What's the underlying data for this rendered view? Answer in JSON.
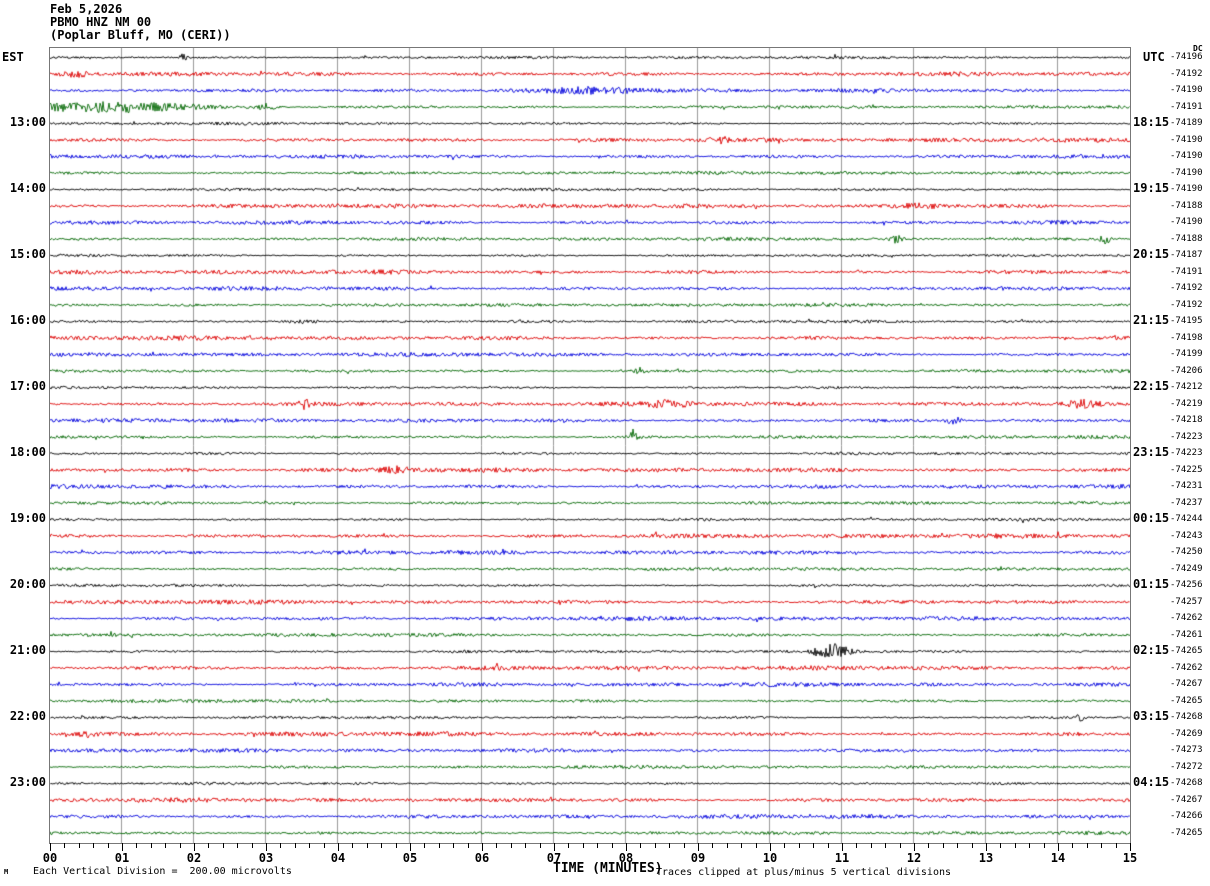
{
  "header": {
    "date": "Feb 5,2026",
    "station": "PBMO HNZ NM 00",
    "location": "(Poplar Bluff, MO (CERI))"
  },
  "axes": {
    "left_header": "EST",
    "right_header": "UTC",
    "dc_header": "DC",
    "x_label": "TIME (MINUTES)"
  },
  "footer": {
    "scale_note": "Each Vertical Division =  200.00 microvolts",
    "clip_note": "Traces clipped at plus/minus 5 vertical divisions",
    "corner_mark": "M"
  },
  "colors": {
    "trace_black": "#000000",
    "trace_red": "#dd0000",
    "trace_blue": "#0000dd",
    "trace_green": "#006600",
    "grid": "#999999",
    "frame": "#777777"
  },
  "chart_data": {
    "type": "line",
    "title": "Helicorder seismogram, station PBMO HNZ NM 00, Poplar Bluff MO (CERI), Feb 5 2026",
    "xlabel": "TIME (MINUTES)",
    "x_range": [
      0,
      15
    ],
    "x_tick_labels": [
      "00",
      "01",
      "02",
      "03",
      "04",
      "05",
      "06",
      "07",
      "08",
      "09",
      "10",
      "11",
      "12",
      "13",
      "14",
      "15"
    ],
    "minor_ticks_per_minute": 5,
    "minutes_per_row": 15,
    "clip_divisions": 5,
    "row_color_cycle": [
      "black",
      "red",
      "blue",
      "green"
    ],
    "noise_amp_by_color": {
      "black": 1.0,
      "red": 1.6,
      "blue": 1.5,
      "green": 1.2
    },
    "rows": [
      {
        "color": "black",
        "est": "",
        "utc": "",
        "dc": -74196
      },
      {
        "color": "red",
        "est": "",
        "utc": "",
        "dc": -74192
      },
      {
        "color": "blue",
        "est": "",
        "utc": "",
        "dc": -74190
      },
      {
        "color": "green",
        "est": "",
        "utc": "",
        "dc": -74191
      },
      {
        "color": "black",
        "est": "13:00",
        "utc": "18:15",
        "dc": -74189
      },
      {
        "color": "red",
        "est": "",
        "utc": "",
        "dc": -74190
      },
      {
        "color": "blue",
        "est": "",
        "utc": "",
        "dc": -74190
      },
      {
        "color": "green",
        "est": "",
        "utc": "",
        "dc": -74190
      },
      {
        "color": "black",
        "est": "14:00",
        "utc": "19:15",
        "dc": -74190
      },
      {
        "color": "red",
        "est": "",
        "utc": "",
        "dc": -74188
      },
      {
        "color": "blue",
        "est": "",
        "utc": "",
        "dc": -74190
      },
      {
        "color": "green",
        "est": "",
        "utc": "",
        "dc": -74188
      },
      {
        "color": "black",
        "est": "15:00",
        "utc": "20:15",
        "dc": -74187
      },
      {
        "color": "red",
        "est": "",
        "utc": "",
        "dc": -74191
      },
      {
        "color": "blue",
        "est": "",
        "utc": "",
        "dc": -74192
      },
      {
        "color": "green",
        "est": "",
        "utc": "",
        "dc": -74192
      },
      {
        "color": "black",
        "est": "16:00",
        "utc": "21:15",
        "dc": -74195
      },
      {
        "color": "red",
        "est": "",
        "utc": "",
        "dc": -74198
      },
      {
        "color": "blue",
        "est": "",
        "utc": "",
        "dc": -74199
      },
      {
        "color": "green",
        "est": "",
        "utc": "",
        "dc": -74206
      },
      {
        "color": "black",
        "est": "17:00",
        "utc": "22:15",
        "dc": -74212
      },
      {
        "color": "red",
        "est": "",
        "utc": "",
        "dc": -74219
      },
      {
        "color": "blue",
        "est": "",
        "utc": "",
        "dc": -74218
      },
      {
        "color": "green",
        "est": "",
        "utc": "",
        "dc": -74223
      },
      {
        "color": "black",
        "est": "18:00",
        "utc": "23:15",
        "dc": -74223
      },
      {
        "color": "red",
        "est": "",
        "utc": "",
        "dc": -74225
      },
      {
        "color": "blue",
        "est": "",
        "utc": "",
        "dc": -74231
      },
      {
        "color": "green",
        "est": "",
        "utc": "",
        "dc": -74237
      },
      {
        "color": "black",
        "est": "19:00",
        "utc": "00:15",
        "dc": -74244
      },
      {
        "color": "red",
        "est": "",
        "utc": "",
        "dc": -74243
      },
      {
        "color": "blue",
        "est": "",
        "utc": "",
        "dc": -74250
      },
      {
        "color": "green",
        "est": "",
        "utc": "",
        "dc": -74249
      },
      {
        "color": "black",
        "est": "20:00",
        "utc": "01:15",
        "dc": -74256
      },
      {
        "color": "red",
        "est": "",
        "utc": "",
        "dc": -74257
      },
      {
        "color": "blue",
        "est": "",
        "utc": "",
        "dc": -74262
      },
      {
        "color": "green",
        "est": "",
        "utc": "",
        "dc": -74261
      },
      {
        "color": "black",
        "est": "21:00",
        "utc": "02:15",
        "dc": -74265
      },
      {
        "color": "red",
        "est": "",
        "utc": "",
        "dc": -74262
      },
      {
        "color": "blue",
        "est": "",
        "utc": "",
        "dc": -74267
      },
      {
        "color": "green",
        "est": "",
        "utc": "",
        "dc": -74265
      },
      {
        "color": "black",
        "est": "22:00",
        "utc": "03:15",
        "dc": -74268
      },
      {
        "color": "red",
        "est": "",
        "utc": "",
        "dc": -74269
      },
      {
        "color": "blue",
        "est": "",
        "utc": "",
        "dc": -74273
      },
      {
        "color": "green",
        "est": "",
        "utc": "",
        "dc": -74272
      },
      {
        "color": "black",
        "est": "23:00",
        "utc": "04:15",
        "dc": -74268
      },
      {
        "color": "red",
        "est": "",
        "utc": "",
        "dc": -74267
      },
      {
        "color": "blue",
        "est": "",
        "utc": "",
        "dc": -74266
      },
      {
        "color": "green",
        "est": "",
        "utc": "",
        "dc": -74265
      }
    ],
    "events": [
      {
        "row": 0,
        "t": 1.85,
        "dur": 0.08,
        "amp": 3
      },
      {
        "row": 1,
        "t": 0.35,
        "dur": 0.3,
        "amp": 2.5
      },
      {
        "row": 2,
        "t": 7.6,
        "dur": 0.9,
        "amp": 2.2
      },
      {
        "row": 3,
        "t": 0.9,
        "dur": 1.6,
        "amp": 4.5
      },
      {
        "row": 3,
        "t": 3.0,
        "dur": 0.2,
        "amp": 3
      },
      {
        "row": 5,
        "t": 9.3,
        "dur": 0.15,
        "amp": 2.5
      },
      {
        "row": 9,
        "t": 12.1,
        "dur": 0.5,
        "amp": 2.2
      },
      {
        "row": 11,
        "t": 11.75,
        "dur": 0.1,
        "amp": 4
      },
      {
        "row": 11,
        "t": 14.65,
        "dur": 0.1,
        "amp": 4.5
      },
      {
        "row": 16,
        "t": 3.5,
        "dur": 0.4,
        "amp": 2
      },
      {
        "row": 19,
        "t": 8.2,
        "dur": 0.12,
        "amp": 3
      },
      {
        "row": 21,
        "t": 3.55,
        "dur": 0.12,
        "amp": 5
      },
      {
        "row": 21,
        "t": 8.6,
        "dur": 0.4,
        "amp": 2.5
      },
      {
        "row": 21,
        "t": 14.35,
        "dur": 0.3,
        "amp": 3.5
      },
      {
        "row": 22,
        "t": 12.55,
        "dur": 0.15,
        "amp": 4
      },
      {
        "row": 23,
        "t": 8.1,
        "dur": 0.12,
        "amp": 4
      },
      {
        "row": 25,
        "t": 4.8,
        "dur": 0.3,
        "amp": 2.5
      },
      {
        "row": 36,
        "t": 10.85,
        "dur": 0.3,
        "amp": 10
      },
      {
        "row": 40,
        "t": 14.3,
        "dur": 0.08,
        "amp": 3.5
      },
      {
        "row": 41,
        "t": 0.5,
        "dur": 0.2,
        "amp": 2.5
      }
    ]
  }
}
